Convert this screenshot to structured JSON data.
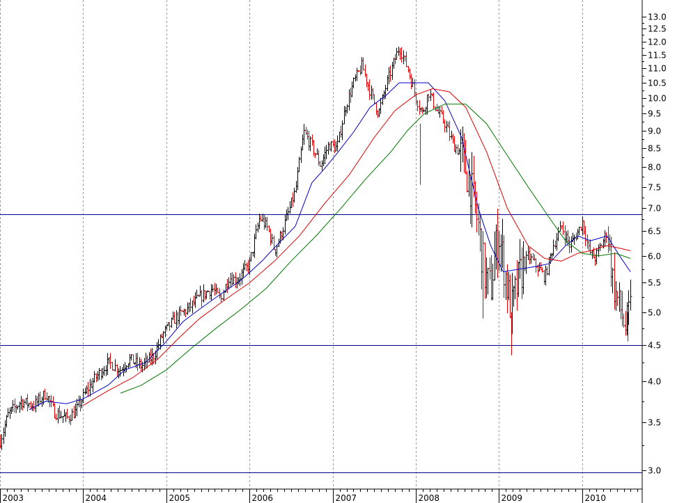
{
  "chart_data": {
    "type": "line",
    "subtype": "weekly price bars (OHLC) with moving averages",
    "scale": "log",
    "grid": {
      "vertical": true,
      "horizontal": false
    },
    "legend": "none",
    "ylim": [
      2.95,
      13.6
    ],
    "y_ticks": [
      "3.0",
      "3.5",
      "4.0",
      "4.5",
      "5.0",
      "5.5",
      "6.0",
      "6.5",
      "7.0",
      "7.5",
      "8.0",
      "8.5",
      "9.0",
      "9.5",
      "10.0",
      "10.5",
      "11.0",
      "11.5",
      "12.0",
      "12.5",
      "13.0"
    ],
    "x_start": "2003.0",
    "x_end": "2010.67",
    "x_ticks": [
      "2003",
      "2004",
      "2005",
      "2006",
      "2007",
      "2008",
      "2009",
      "2010"
    ],
    "horizontal_lines": [
      6.86,
      4.5,
      2.98
    ],
    "price_anchors": [
      [
        2003.0,
        3.3
      ],
      [
        2003.1,
        3.6
      ],
      [
        2003.25,
        3.75
      ],
      [
        2003.4,
        3.7
      ],
      [
        2003.55,
        3.85
      ],
      [
        2003.65,
        3.62
      ],
      [
        2003.8,
        3.55
      ],
      [
        2003.9,
        3.62
      ],
      [
        2004.05,
        3.9
      ],
      [
        2004.15,
        4.05
      ],
      [
        2004.3,
        4.25
      ],
      [
        2004.45,
        4.15
      ],
      [
        2004.55,
        4.3
      ],
      [
        2004.7,
        4.2
      ],
      [
        2004.85,
        4.35
      ],
      [
        2004.95,
        4.65
      ],
      [
        2005.1,
        4.9
      ],
      [
        2005.25,
        5.05
      ],
      [
        2005.4,
        5.25
      ],
      [
        2005.55,
        5.4
      ],
      [
        2005.65,
        5.2
      ],
      [
        2005.75,
        5.6
      ],
      [
        2005.85,
        5.55
      ],
      [
        2006.0,
        5.85
      ],
      [
        2006.12,
        6.8
      ],
      [
        2006.22,
        6.55
      ],
      [
        2006.3,
        6.1
      ],
      [
        2006.4,
        6.55
      ],
      [
        2006.55,
        7.4
      ],
      [
        2006.65,
        8.95
      ],
      [
        2006.75,
        8.55
      ],
      [
        2006.85,
        8.05
      ],
      [
        2006.95,
        8.6
      ],
      [
        2007.05,
        8.5
      ],
      [
        2007.15,
        9.7
      ],
      [
        2007.25,
        10.5
      ],
      [
        2007.35,
        11.1
      ],
      [
        2007.45,
        10.2
      ],
      [
        2007.55,
        9.5
      ],
      [
        2007.65,
        10.5
      ],
      [
        2007.8,
        11.8
      ],
      [
        2007.9,
        11.0
      ],
      [
        2008.0,
        10.0
      ],
      [
        2008.08,
        9.5
      ],
      [
        2008.15,
        10.2
      ],
      [
        2008.25,
        9.6
      ],
      [
        2008.35,
        9.2
      ],
      [
        2008.45,
        8.6
      ],
      [
        2008.55,
        8.3
      ],
      [
        2008.65,
        7.6
      ],
      [
        2008.75,
        6.6
      ],
      [
        2008.83,
        5.6
      ],
      [
        2008.9,
        5.4
      ],
      [
        2008.95,
        6.1
      ],
      [
        2009.0,
        6.4
      ],
      [
        2009.05,
        5.9
      ],
      [
        2009.1,
        5.4
      ],
      [
        2009.15,
        5.05
      ],
      [
        2009.25,
        5.65
      ],
      [
        2009.35,
        6.0
      ],
      [
        2009.45,
        5.8
      ],
      [
        2009.55,
        5.6
      ],
      [
        2009.65,
        6.2
      ],
      [
        2009.75,
        6.6
      ],
      [
        2009.85,
        6.2
      ],
      [
        2009.95,
        6.5
      ],
      [
        2010.0,
        6.7
      ],
      [
        2010.08,
        6.1
      ],
      [
        2010.15,
        5.95
      ],
      [
        2010.25,
        6.3
      ],
      [
        2010.3,
        6.5
      ],
      [
        2010.38,
        5.4
      ],
      [
        2010.45,
        5.1
      ],
      [
        2010.52,
        4.75
      ],
      [
        2010.58,
        5.1
      ]
    ],
    "moving_averages": [
      {
        "color": "#0000cc",
        "points": [
          [
            2003.35,
            3.65
          ],
          [
            2003.55,
            3.75
          ],
          [
            2003.8,
            3.72
          ],
          [
            2004.0,
            3.78
          ],
          [
            2004.3,
            3.95
          ],
          [
            2004.5,
            4.15
          ],
          [
            2004.75,
            4.25
          ],
          [
            2005.0,
            4.55
          ],
          [
            2005.2,
            4.85
          ],
          [
            2005.4,
            5.05
          ],
          [
            2005.65,
            5.3
          ],
          [
            2005.9,
            5.55
          ],
          [
            2006.15,
            5.9
          ],
          [
            2006.35,
            6.25
          ],
          [
            2006.55,
            6.6
          ],
          [
            2006.75,
            7.6
          ],
          [
            2006.9,
            7.95
          ],
          [
            2007.05,
            8.35
          ],
          [
            2007.25,
            8.95
          ],
          [
            2007.45,
            9.7
          ],
          [
            2007.65,
            10.1
          ],
          [
            2007.8,
            10.5
          ],
          [
            2008.0,
            10.5
          ],
          [
            2008.15,
            10.5
          ],
          [
            2008.35,
            9.9
          ],
          [
            2008.55,
            8.8
          ],
          [
            2008.75,
            7.0
          ],
          [
            2008.9,
            6.2
          ],
          [
            2009.05,
            5.7
          ],
          [
            2009.25,
            5.75
          ],
          [
            2009.45,
            5.8
          ],
          [
            2009.6,
            5.85
          ],
          [
            2009.8,
            6.2
          ],
          [
            2009.95,
            6.4
          ],
          [
            2010.1,
            6.3
          ],
          [
            2010.3,
            6.4
          ],
          [
            2010.45,
            6.0
          ],
          [
            2010.58,
            5.7
          ]
        ]
      },
      {
        "color": "#dd0000",
        "points": [
          [
            2004.0,
            3.7
          ],
          [
            2004.3,
            3.88
          ],
          [
            2004.6,
            4.05
          ],
          [
            2004.9,
            4.3
          ],
          [
            2005.15,
            4.6
          ],
          [
            2005.4,
            4.9
          ],
          [
            2005.7,
            5.2
          ],
          [
            2006.0,
            5.5
          ],
          [
            2006.3,
            5.9
          ],
          [
            2006.6,
            6.4
          ],
          [
            2006.9,
            7.1
          ],
          [
            2007.2,
            7.8
          ],
          [
            2007.5,
            8.8
          ],
          [
            2007.75,
            9.6
          ],
          [
            2008.0,
            10.1
          ],
          [
            2008.2,
            10.3
          ],
          [
            2008.4,
            10.2
          ],
          [
            2008.6,
            9.7
          ],
          [
            2008.85,
            8.4
          ],
          [
            2009.1,
            7.0
          ],
          [
            2009.35,
            6.2
          ],
          [
            2009.55,
            5.95
          ],
          [
            2009.75,
            5.9
          ],
          [
            2009.95,
            6.05
          ],
          [
            2010.1,
            6.1
          ],
          [
            2010.3,
            6.2
          ],
          [
            2010.45,
            6.15
          ],
          [
            2010.58,
            6.1
          ]
        ]
      },
      {
        "color": "#007700",
        "points": [
          [
            2004.45,
            3.85
          ],
          [
            2004.7,
            3.95
          ],
          [
            2005.0,
            4.15
          ],
          [
            2005.3,
            4.45
          ],
          [
            2005.6,
            4.75
          ],
          [
            2005.9,
            5.05
          ],
          [
            2006.2,
            5.4
          ],
          [
            2006.5,
            5.9
          ],
          [
            2006.8,
            6.4
          ],
          [
            2007.1,
            7.0
          ],
          [
            2007.4,
            7.7
          ],
          [
            2007.7,
            8.4
          ],
          [
            2007.9,
            9.0
          ],
          [
            2008.1,
            9.5
          ],
          [
            2008.35,
            9.8
          ],
          [
            2008.6,
            9.8
          ],
          [
            2008.85,
            9.2
          ],
          [
            2009.1,
            8.3
          ],
          [
            2009.35,
            7.5
          ],
          [
            2009.6,
            6.8
          ],
          [
            2009.8,
            6.3
          ],
          [
            2010.0,
            6.05
          ],
          [
            2010.2,
            6.0
          ],
          [
            2010.4,
            6.05
          ],
          [
            2010.58,
            5.95
          ]
        ]
      }
    ]
  }
}
